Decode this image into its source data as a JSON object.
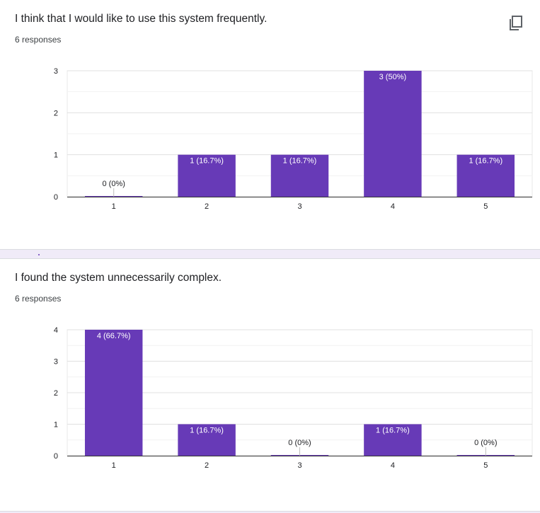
{
  "questions": [
    {
      "title": "I think that I would like to use this system frequently.",
      "responses": "6 responses",
      "show_copy": true
    },
    {
      "title": "I found the system unnecessarily complex.",
      "responses": "6 responses",
      "show_copy": false
    }
  ],
  "copy_icon": "copy-icon",
  "colors": {
    "bar": "#673ab7",
    "grid": "#e8e8e8",
    "axis": "#333333",
    "text": "#202124",
    "separator": "#f0ebf8"
  },
  "chart_data": [
    {
      "type": "bar",
      "categories": [
        "1",
        "2",
        "3",
        "4",
        "5"
      ],
      "values": [
        0,
        1,
        1,
        3,
        1
      ],
      "data_labels": [
        "0 (0%)",
        "1 (16.7%)",
        "1 (16.7%)",
        "3 (50%)",
        "1 (16.7%)"
      ],
      "ylim": [
        0,
        3
      ],
      "yticks": [
        "0",
        "1",
        "2",
        "3"
      ],
      "grid": true,
      "xlabel": "",
      "ylabel": ""
    },
    {
      "type": "bar",
      "categories": [
        "1",
        "2",
        "3",
        "4",
        "5"
      ],
      "values": [
        4,
        1,
        0,
        1,
        0
      ],
      "data_labels": [
        "4 (66.7%)",
        "1 (16.7%)",
        "0 (0%)",
        "1 (16.7%)",
        "0 (0%)"
      ],
      "ylim": [
        0,
        4
      ],
      "yticks": [
        "0",
        "1",
        "2",
        "3",
        "4"
      ],
      "grid": true,
      "xlabel": "",
      "ylabel": ""
    }
  ]
}
